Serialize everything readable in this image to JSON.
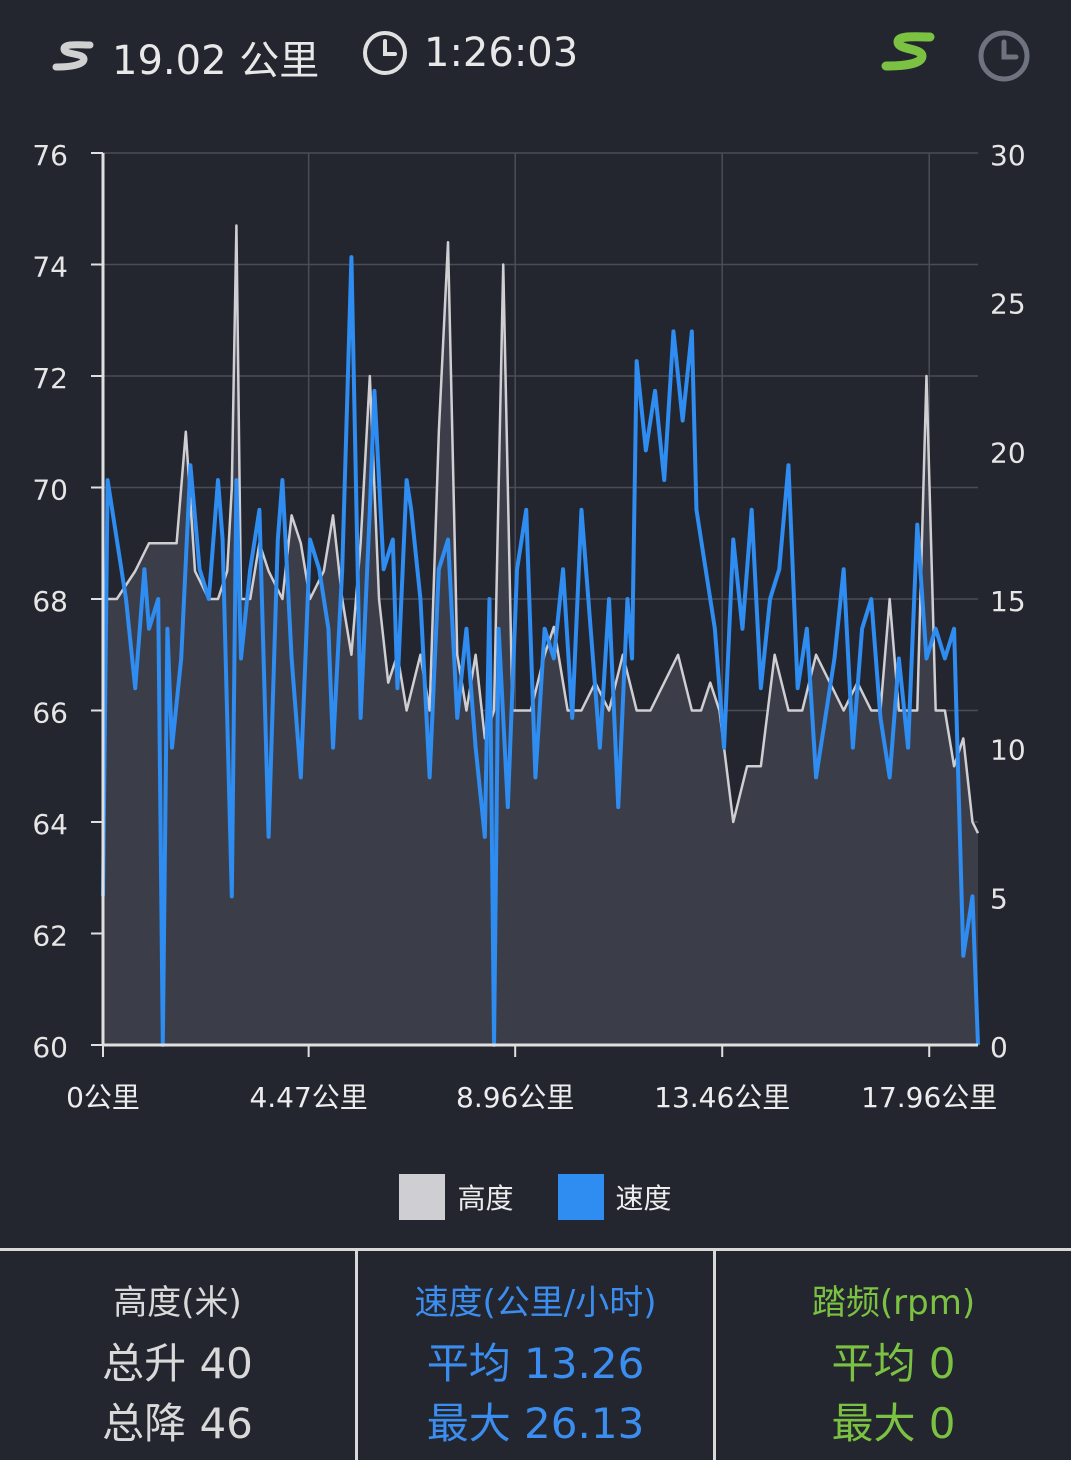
{
  "header": {
    "distance": "19.02 公里",
    "duration": "1:26:03",
    "icons": [
      "route-icon",
      "clock-icon",
      "route-toggle-icon",
      "clock-toggle-icon"
    ],
    "accent_green": "#7cc242",
    "icon_gray": "#6f7380"
  },
  "chart_data": {
    "type": "line",
    "x_unit": "公里",
    "x_ticks": [
      "0公里",
      "4.47公里",
      "8.96公里",
      "13.46公里",
      "17.96公里"
    ],
    "x_tick_values": [
      0,
      4.47,
      8.96,
      13.46,
      17.96
    ],
    "xlim": [
      0,
      19.02
    ],
    "y_left": {
      "ticks": [
        "60",
        "62",
        "64",
        "66",
        "68",
        "70",
        "72",
        "74",
        "76"
      ],
      "range": [
        60,
        76
      ]
    },
    "y_right": {
      "ticks": [
        "0",
        "5",
        "10",
        "15",
        "20",
        "25",
        "30"
      ],
      "range": [
        0,
        30
      ]
    },
    "grid": true,
    "legend_position": "bottom",
    "series": [
      {
        "name": "高度",
        "axis": "left",
        "type": "area",
        "color": "#cfcfd3",
        "fill": "#3b3e49",
        "x": [
          0,
          0.3,
          0.7,
          1.0,
          1.4,
          1.6,
          1.8,
          2.0,
          2.3,
          2.5,
          2.7,
          2.8,
          2.9,
          3.0,
          3.2,
          3.4,
          3.6,
          3.9,
          4.1,
          4.3,
          4.5,
          4.8,
          5.0,
          5.2,
          5.4,
          5.6,
          5.8,
          6.0,
          6.2,
          6.4,
          6.6,
          6.9,
          7.1,
          7.3,
          7.5,
          7.7,
          7.9,
          8.1,
          8.3,
          8.5,
          8.6,
          8.7,
          8.9,
          9.1,
          9.3,
          9.6,
          9.8,
          10.1,
          10.4,
          10.7,
          11.0,
          11.3,
          11.6,
          11.9,
          12.2,
          12.5,
          12.8,
          13.0,
          13.2,
          13.4,
          13.7,
          14.0,
          14.3,
          14.6,
          14.9,
          15.2,
          15.5,
          15.8,
          16.1,
          16.4,
          16.7,
          16.9,
          17.1,
          17.3,
          17.5,
          17.7,
          17.9,
          18.1,
          18.3,
          18.5,
          18.7,
          18.9,
          19.02
        ],
        "values": [
          68,
          68,
          68.5,
          69,
          69,
          69,
          71,
          68.5,
          68,
          68,
          68.5,
          70,
          74.7,
          68,
          68,
          69,
          68.5,
          68,
          69.5,
          69,
          68,
          68.5,
          69.5,
          68,
          67,
          69,
          72,
          68,
          66.5,
          67,
          66,
          67,
          66,
          71,
          74.4,
          67,
          66,
          67,
          65.5,
          66,
          70,
          74,
          66,
          66,
          66,
          67,
          67.5,
          66,
          66,
          66.5,
          66,
          67,
          66,
          66,
          66.5,
          67,
          66,
          66,
          66.5,
          66,
          64,
          65,
          65,
          67,
          66,
          66,
          67,
          66.5,
          66,
          66.5,
          66,
          66,
          68,
          66,
          66,
          66,
          72,
          66,
          66,
          65,
          65.5,
          64,
          63.8
        ]
      },
      {
        "name": "速度",
        "axis": "right",
        "type": "line",
        "color": "#2f8cf0",
        "x": [
          0,
          0.1,
          0.3,
          0.5,
          0.7,
          0.9,
          1.0,
          1.2,
          1.3,
          1.4,
          1.5,
          1.7,
          1.9,
          2.1,
          2.3,
          2.5,
          2.6,
          2.8,
          2.9,
          3.0,
          3.2,
          3.4,
          3.6,
          3.8,
          3.9,
          4.1,
          4.3,
          4.5,
          4.7,
          4.9,
          5.0,
          5.2,
          5.4,
          5.6,
          5.8,
          5.9,
          6.1,
          6.3,
          6.4,
          6.6,
          6.7,
          6.9,
          7.1,
          7.3,
          7.5,
          7.7,
          7.9,
          8.1,
          8.3,
          8.4,
          8.5,
          8.6,
          8.8,
          9.0,
          9.2,
          9.4,
          9.6,
          9.8,
          10.0,
          10.2,
          10.4,
          10.6,
          10.8,
          11.0,
          11.2,
          11.4,
          11.5,
          11.6,
          11.8,
          12.0,
          12.2,
          12.4,
          12.6,
          12.8,
          12.9,
          13.1,
          13.3,
          13.5,
          13.7,
          13.9,
          14.1,
          14.3,
          14.5,
          14.7,
          14.9,
          15.1,
          15.3,
          15.5,
          15.7,
          15.9,
          16.1,
          16.3,
          16.5,
          16.7,
          16.9,
          17.1,
          17.3,
          17.5,
          17.7,
          17.9,
          18.1,
          18.3,
          18.5,
          18.7,
          18.9,
          19.02
        ],
        "values": [
          5,
          19,
          17,
          15,
          12,
          16,
          14,
          15,
          0,
          14,
          10,
          13,
          19.5,
          16,
          15,
          19,
          17,
          5,
          19,
          13,
          16,
          18,
          7,
          17,
          19,
          13,
          9,
          17,
          16,
          14,
          10,
          16,
          26.5,
          11,
          18,
          22,
          16,
          17,
          12,
          19,
          18,
          15,
          9,
          16,
          17,
          11,
          14,
          10,
          7,
          15,
          0,
          14,
          8,
          16,
          18,
          9,
          14,
          13,
          16,
          11,
          18,
          14,
          10,
          15,
          8,
          15,
          13,
          23,
          20,
          22,
          19,
          24,
          21,
          24,
          18,
          16,
          14,
          10,
          17,
          14,
          18,
          12,
          15,
          16,
          19.5,
          12,
          14,
          9,
          11,
          13,
          16,
          10,
          14,
          15,
          11,
          9,
          13,
          10,
          17.5,
          13,
          14,
          13,
          14,
          3,
          5,
          0
        ]
      }
    ]
  },
  "legend": {
    "altitude_label": "高度",
    "speed_label": "速度",
    "altitude_color": "#cfcfd3",
    "speed_color": "#2f8cf0"
  },
  "stats": {
    "altitude": {
      "title": "高度(米)",
      "line1": "总升 40",
      "line2": "总降 46",
      "color": "#d9d9d9"
    },
    "speed": {
      "title": "速度(公里/小时)",
      "line1": "平均 13.26",
      "line2": "最大 26.13",
      "color": "#3b8ef0"
    },
    "cadence": {
      "title": "踏频(rpm)",
      "line1": "平均 0",
      "line2": "最大 0",
      "color": "#7cc242"
    }
  }
}
